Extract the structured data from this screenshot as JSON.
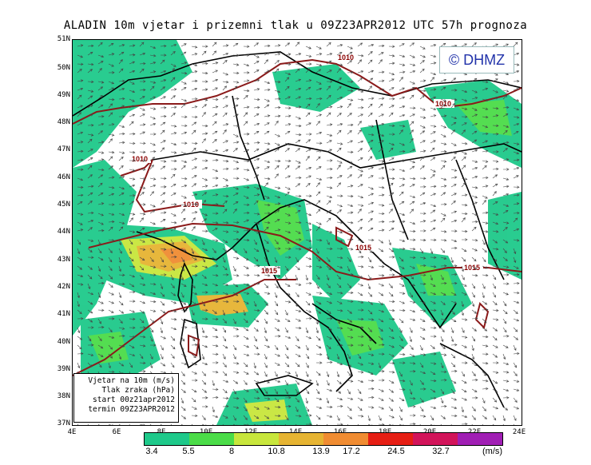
{
  "title": "ALADIN 10m vjetar i prizemni tlak u 09Z23APR2012 UTC 57h prognoza",
  "logo": "© DHMZ",
  "lat_labels": [
    "51N",
    "50N",
    "49N",
    "48N",
    "47N",
    "46N",
    "45N",
    "44N",
    "43N",
    "42N",
    "41N",
    "40N",
    "39N",
    "38N",
    "37N"
  ],
  "lon_labels": [
    "4E",
    "6E",
    "8E",
    "10E",
    "12E",
    "14E",
    "16E",
    "18E",
    "20E",
    "22E",
    "24E"
  ],
  "info": {
    "line1": "Vjetar na 10m (m/s)",
    "line2": "Tlak zraka (hPa)",
    "line3": "start 00z21apr2012",
    "line4": "termin 09Z23APR2012"
  },
  "isobars": [
    "1010",
    "1010",
    "1010",
    "1010",
    "1015",
    "1015",
    "1015"
  ],
  "colorbar": {
    "colors": [
      "#1ec98a",
      "#4bdc48",
      "#c8e63c",
      "#e6b432",
      "#f08c32",
      "#e61e14",
      "#d2145a",
      "#a01eb4"
    ],
    "ticks": [
      "3.4",
      "5.5",
      "8",
      "10.8",
      "13.9",
      "17.2",
      "24.5",
      "32.7"
    ],
    "units": "(m/s)"
  }
}
